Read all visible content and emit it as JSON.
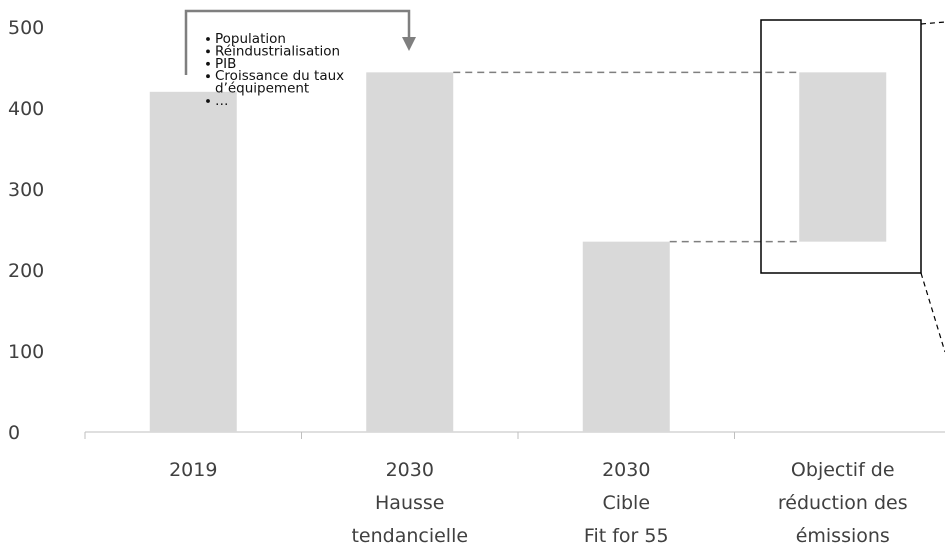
{
  "chart_data": {
    "type": "bar",
    "ylim": [
      0,
      500
    ],
    "yticks": [
      0,
      100,
      200,
      300,
      400,
      500
    ],
    "categories": [
      [
        "2019"
      ],
      [
        "2030",
        "Hausse",
        "tendancielle"
      ],
      [
        "2030",
        "Cible",
        "Fit for 55"
      ],
      [
        "Objectif de",
        "réduction des",
        "émissions"
      ]
    ],
    "bars": [
      {
        "base": 0,
        "value": 420
      },
      {
        "base": 0,
        "value": 444
      },
      {
        "base": 0,
        "value": 235
      },
      {
        "base": 235,
        "value": 444
      }
    ],
    "annotation": [
      "Population",
      "Réindustrialisation",
      "PIB",
      "Croissance du taux",
      "d’équipement",
      "…"
    ],
    "colors": {
      "bar": "#d9d9d9",
      "axis": "#bfbfbf",
      "dashed": "#7f7f7f",
      "arrow": "#7f7f7f",
      "frame": "#000000"
    }
  }
}
